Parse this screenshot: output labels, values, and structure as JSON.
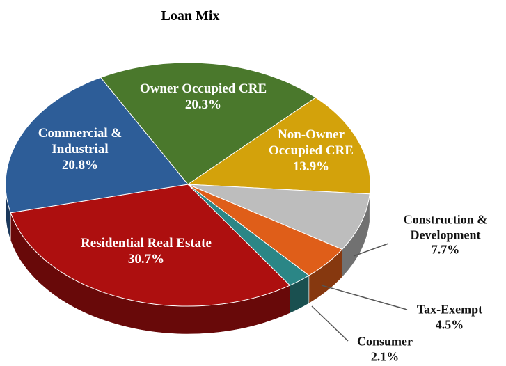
{
  "chart_data": {
    "type": "pie3d",
    "title": "Loan Mix",
    "categories": [
      "Residential Real Estate",
      "Commercial & Industrial",
      "Owner Occupied CRE",
      "Non-Owner Occupied CRE",
      "Construction & Development",
      "Tax-Exempt",
      "Consumer"
    ],
    "values": [
      30.7,
      20.8,
      20.3,
      13.9,
      7.7,
      4.5,
      2.1
    ],
    "value_labels": [
      "30.7%",
      "20.8%",
      "20.3%",
      "13.9%",
      "7.7%",
      "4.5%",
      "2.1%"
    ],
    "colors": [
      "#ad0f0f",
      "#2d5d98",
      "#4a782c",
      "#d3a20b",
      "#bdbdbd",
      "#df5e19",
      "#2b8686"
    ]
  }
}
